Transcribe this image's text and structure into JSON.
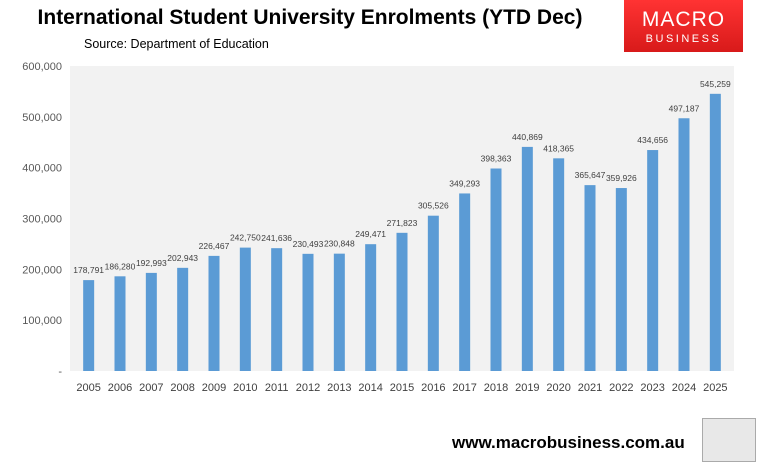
{
  "header": {
    "title": "International Student University Enrolments (YTD Dec)",
    "source": "Source: Department of Education"
  },
  "logo": {
    "line1": "MACRO",
    "line2": "BUSINESS",
    "color": "#e62020"
  },
  "footer": {
    "url": "www.macrobusiness.com.au"
  },
  "chart_data": {
    "type": "bar",
    "title": "International Student University Enrolments (YTD Dec)",
    "categories": [
      "2005",
      "2006",
      "2007",
      "2008",
      "2009",
      "2010",
      "2011",
      "2012",
      "2013",
      "2014",
      "2015",
      "2016",
      "2017",
      "2018",
      "2019",
      "2020",
      "2021",
      "2022",
      "2023",
      "2024",
      "2025"
    ],
    "values": [
      178791,
      186280,
      192993,
      202943,
      226467,
      242750,
      241636,
      230493,
      230848,
      249471,
      271823,
      305526,
      349293,
      398363,
      440869,
      418365,
      365647,
      359926,
      434656,
      497187,
      545259
    ],
    "value_labels": [
      "178,791",
      "186,280",
      "192,993",
      "202,943",
      "226,467",
      "242,750",
      "241,636",
      "230,493",
      "230,848",
      "249,471",
      "271,823",
      "305,526",
      "349,293",
      "398,363",
      "440,869",
      "418,365",
      "365,647",
      "359,926",
      "434,656",
      "497,187",
      "545,259"
    ],
    "ylim": [
      0,
      600000
    ],
    "yticks": [
      0,
      100000,
      200000,
      300000,
      400000,
      500000,
      600000
    ],
    "ytick_labels": [
      "-",
      "100,000",
      "200,000",
      "300,000",
      "400,000",
      "500,000",
      "600,000"
    ],
    "grid": false,
    "bar_color": "#5b9bd5",
    "plot_background": "#f2f2f2"
  }
}
